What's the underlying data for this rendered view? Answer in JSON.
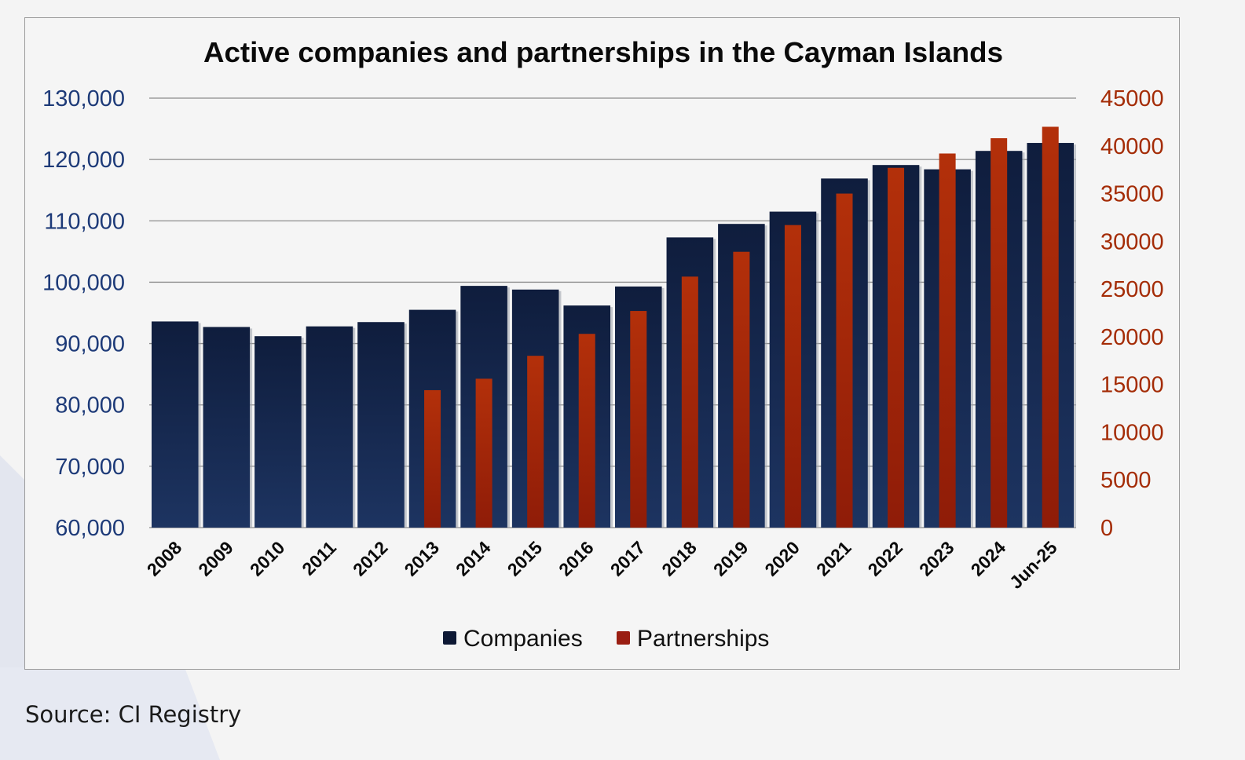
{
  "chart_data": {
    "type": "bar",
    "title": "Active companies and partnerships in the Cayman Islands",
    "categories": [
      "2008",
      "2009",
      "2010",
      "2011",
      "2012",
      "2013",
      "2014",
      "2015",
      "2016",
      "2017",
      "2018",
      "2019",
      "2020",
      "2021",
      "2022",
      "2023",
      "2024",
      "Jun-25"
    ],
    "series": [
      {
        "name": "Companies",
        "axis": "left",
        "color": "#1b2d52",
        "values": [
          93600,
          92700,
          91200,
          92800,
          93500,
          95500,
          99400,
          98800,
          96200,
          99300,
          107300,
          109500,
          111500,
          116900,
          119100,
          118400,
          121400,
          122700
        ]
      },
      {
        "name": "Partnerships",
        "axis": "right",
        "color": "#b0320b",
        "values": [
          null,
          null,
          null,
          null,
          null,
          14400,
          15600,
          18000,
          20300,
          22700,
          26300,
          28900,
          31700,
          35000,
          37700,
          39200,
          40800,
          42000
        ]
      }
    ],
    "y_left": {
      "min": 60000,
      "max": 130000,
      "ticks": [
        "60,000",
        "70,000",
        "80,000",
        "90,000",
        "100,000",
        "110,000",
        "120,000",
        "130,000"
      ],
      "color": "#1d3a78"
    },
    "y_right": {
      "min": 0,
      "max": 45000,
      "ticks": [
        "0",
        "5000",
        "10000",
        "15000",
        "20000",
        "25000",
        "30000",
        "35000",
        "40000",
        "45000"
      ],
      "color": "#a42c06"
    },
    "grid": true,
    "legend": {
      "position": "bottom-center",
      "items": [
        {
          "label": "Companies",
          "color": "#0d1834"
        },
        {
          "label": "Partnerships",
          "color": "#9a1e12"
        }
      ]
    }
  },
  "source_note": "Source: CI Registry"
}
